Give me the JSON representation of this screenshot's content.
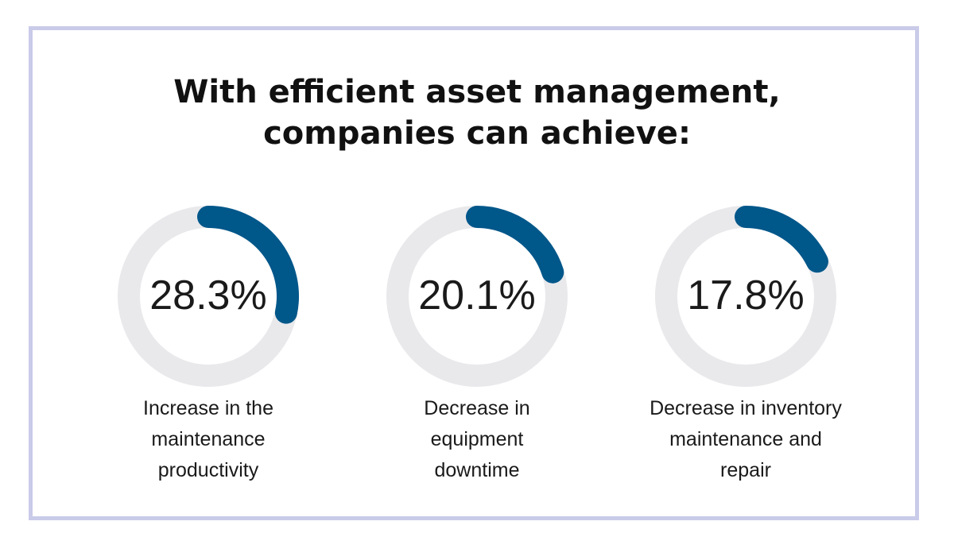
{
  "title": {
    "line1": "With efficient asset management,",
    "line2": "companies can achieve:"
  },
  "colors": {
    "arc": "#00578a",
    "track": "#e9e9ec",
    "border": "#c9cbe9"
  },
  "chart_data": [
    {
      "type": "pie",
      "value": 28.3,
      "label": "28.3%",
      "caption": [
        "Increase in the",
        "maintenance",
        "productivity"
      ]
    },
    {
      "type": "pie",
      "value": 20.1,
      "label": "20.1%",
      "caption": [
        "Decrease in",
        "equipment",
        "downtime"
      ]
    },
    {
      "type": "pie",
      "value": 17.8,
      "label": "17.8%",
      "caption": [
        "Decrease in inventory",
        "maintenance and",
        "repair"
      ]
    }
  ]
}
